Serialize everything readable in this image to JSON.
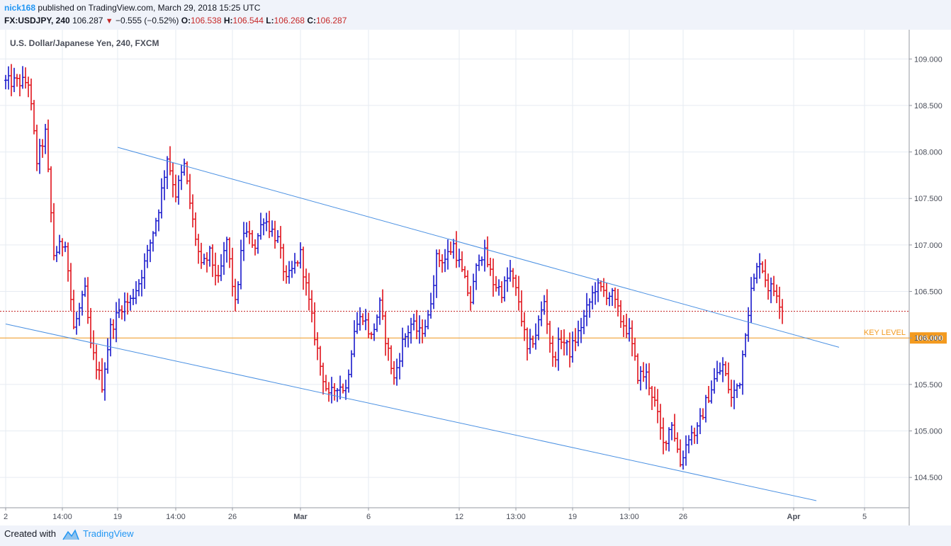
{
  "header": {
    "author": "nick168",
    "published": "published on TradingView.com, March 29, 2018 15:25 UTC",
    "symbol": "FX:USDJPY, 240",
    "last": "106.287",
    "change": "−0.555 (−0.52%)",
    "open_label": "O:",
    "open": "106.538",
    "high_label": "H:",
    "high": "106.544",
    "low_label": "L:",
    "low": "106.268",
    "close_label": "C:",
    "close": "106.287"
  },
  "footer": {
    "created_with": "Created with",
    "brand": "TradingView"
  },
  "colors": {
    "up": "#1a1acc",
    "down": "#e0121b",
    "channel": "#4a90e2",
    "key_level": "#f39a1f",
    "last_price": "#c62828",
    "grid": "#e6ebf2"
  },
  "chart_data": {
    "type": "ohlc",
    "title": "U.S. Dollar/Japanese Yen, 240, FXCM",
    "ylim": [
      104.25,
      109.2
    ],
    "y_ticks": [
      "109.000",
      "108.500",
      "108.000",
      "107.500",
      "107.000",
      "106.500",
      "106.000",
      "105.500",
      "105.000",
      "104.500"
    ],
    "x_ticks": [
      {
        "label": "2",
        "index": 0
      },
      {
        "label": "14:00",
        "index": 20
      },
      {
        "label": "19",
        "index": 39.5
      },
      {
        "label": "14:00",
        "index": 60
      },
      {
        "label": "26",
        "index": 80
      },
      {
        "label": "Mar",
        "index": 104,
        "bold": true
      },
      {
        "label": "6",
        "index": 128
      },
      {
        "label": "12",
        "index": 160
      },
      {
        "label": "13:00",
        "index": 180
      },
      {
        "label": "19",
        "index": 200
      },
      {
        "label": "13:00",
        "index": 220
      },
      {
        "label": "26",
        "index": 239
      },
      {
        "label": "Apr",
        "index": 278,
        "bold": true
      },
      {
        "label": "5",
        "index": 303
      }
    ],
    "key_level": {
      "label": "KEY LEVEL",
      "value": 106.0,
      "value_label": "106.000"
    },
    "last_price": 106.287,
    "channel_lines": [
      {
        "from": [
          39.5,
          108.05
        ],
        "to": [
          294,
          105.9
        ]
      },
      {
        "from": [
          0,
          106.15
        ],
        "to": [
          286,
          104.25
        ]
      }
    ],
    "anchors": [
      [
        0,
        108.75
      ],
      [
        8,
        108.75
      ],
      [
        11,
        107.9
      ],
      [
        14,
        108.2
      ],
      [
        17,
        106.9
      ],
      [
        21,
        107.05
      ],
      [
        24,
        106.1
      ],
      [
        28,
        106.5
      ],
      [
        30,
        105.9
      ],
      [
        34,
        105.5
      ],
      [
        37,
        106.1
      ],
      [
        41,
        106.35
      ],
      [
        44,
        106.4
      ],
      [
        47,
        106.6
      ],
      [
        50,
        106.9
      ],
      [
        54,
        107.4
      ],
      [
        57,
        107.95
      ],
      [
        60,
        107.55
      ],
      [
        63,
        107.85
      ],
      [
        66,
        107.25
      ],
      [
        69,
        106.75
      ],
      [
        72,
        106.9
      ],
      [
        75,
        106.6
      ],
      [
        78,
        107.05
      ],
      [
        81,
        106.35
      ],
      [
        84,
        107.15
      ],
      [
        88,
        107.0
      ],
      [
        91,
        107.3
      ],
      [
        93,
        107.2
      ],
      [
        96,
        107.05
      ],
      [
        99,
        106.6
      ],
      [
        104,
        106.9
      ],
      [
        108,
        106.2
      ],
      [
        111,
        105.7
      ],
      [
        114,
        105.35
      ],
      [
        117,
        105.5
      ],
      [
        120,
        105.45
      ],
      [
        123,
        106.1
      ],
      [
        126,
        106.25
      ],
      [
        129,
        106.0
      ],
      [
        132,
        106.35
      ],
      [
        134,
        106.0
      ],
      [
        137,
        105.55
      ],
      [
        140,
        105.95
      ],
      [
        143,
        106.15
      ],
      [
        146,
        106.05
      ],
      [
        149,
        106.2
      ],
      [
        152,
        106.85
      ],
      [
        155,
        106.85
      ],
      [
        158,
        107.0
      ],
      [
        161,
        106.7
      ],
      [
        164,
        106.4
      ],
      [
        167,
        106.9
      ],
      [
        169,
        106.9
      ],
      [
        172,
        106.6
      ],
      [
        175,
        106.5
      ],
      [
        178,
        106.7
      ],
      [
        181,
        106.4
      ],
      [
        184,
        105.85
      ],
      [
        187,
        106.05
      ],
      [
        190,
        106.4
      ],
      [
        193,
        105.75
      ],
      [
        196,
        106.0
      ],
      [
        199,
        105.85
      ],
      [
        202,
        106.05
      ],
      [
        205,
        106.3
      ],
      [
        208,
        106.55
      ],
      [
        211,
        106.5
      ],
      [
        214,
        106.45
      ],
      [
        217,
        106.2
      ],
      [
        220,
        106.05
      ],
      [
        223,
        105.6
      ],
      [
        226,
        105.6
      ],
      [
        229,
        105.3
      ],
      [
        232,
        104.85
      ],
      [
        235,
        105.1
      ],
      [
        238,
        104.65
      ],
      [
        241,
        104.95
      ],
      [
        244,
        105.0
      ],
      [
        247,
        105.3
      ],
      [
        250,
        105.55
      ],
      [
        253,
        105.7
      ],
      [
        256,
        105.35
      ],
      [
        259,
        105.55
      ],
      [
        261,
        106.1
      ],
      [
        263,
        106.5
      ],
      [
        266,
        106.85
      ],
      [
        269,
        106.55
      ],
      [
        272,
        106.5
      ],
      [
        274,
        106.29
      ]
    ]
  }
}
